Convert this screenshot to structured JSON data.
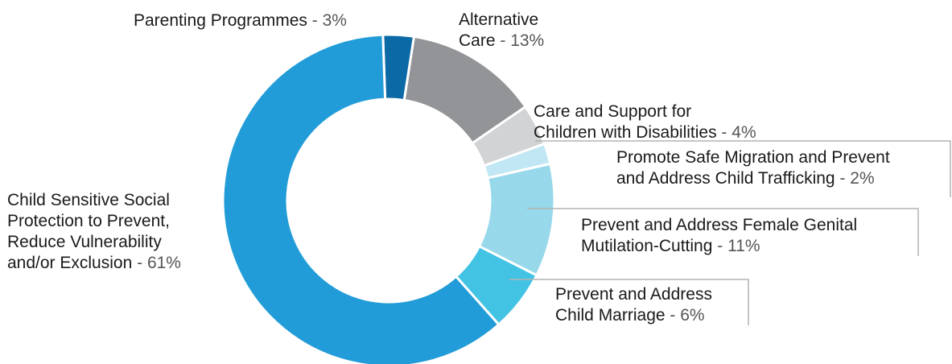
{
  "chart_data": {
    "type": "pie",
    "title": "",
    "slices": [
      {
        "label_lines": [
          "Parenting Programmes"
        ],
        "percent_text": "3%",
        "value": 3,
        "color": "#0b6aa6"
      },
      {
        "label_lines": [
          "Alternative",
          "Care"
        ],
        "percent_text": "13%",
        "value": 13,
        "color": "#929497"
      },
      {
        "label_lines": [
          "Care and Support for",
          "Children with Disabilities"
        ],
        "percent_text": "4%",
        "value": 4,
        "color": "#d1d3d4"
      },
      {
        "label_lines": [
          "Promote Safe Migration and Prevent",
          "and Address Child Trafficking"
        ],
        "percent_text": "2%",
        "value": 2,
        "color": "#c0e7f3"
      },
      {
        "label_lines": [
          "Prevent and Address Female Genital",
          "Mutilation-Cutting"
        ],
        "percent_text": "11%",
        "value": 11,
        "color": "#97d8ea"
      },
      {
        "label_lines": [
          "Prevent and Address",
          "Child Marriage"
        ],
        "percent_text": "6%",
        "value": 6,
        "color": "#42c3e4"
      },
      {
        "label_lines": [
          "Child Sensitive Social",
          "Protection to Prevent,",
          "Reduce Vulnerability",
          "and/or Exclusion"
        ],
        "percent_text": "61%",
        "value": 61,
        "color": "#229cd8"
      }
    ]
  }
}
